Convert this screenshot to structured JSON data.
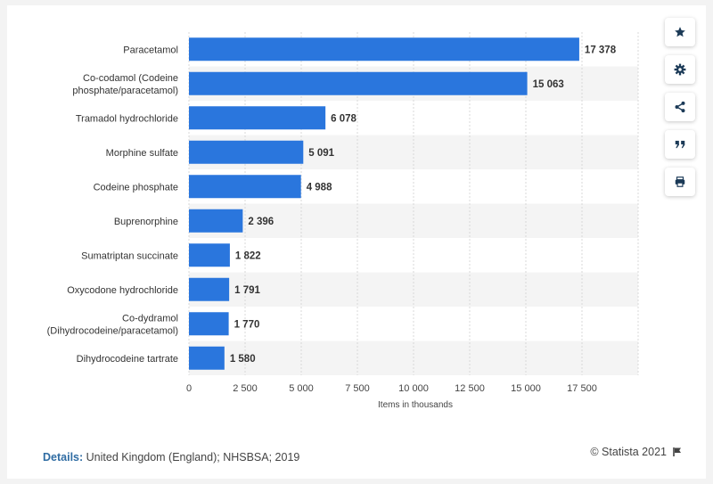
{
  "chart_data": {
    "type": "bar",
    "orientation": "horizontal",
    "categories": [
      [
        "Paracetamol"
      ],
      [
        "Co-codamol (Codeine",
        "phosphate/paracetamol)"
      ],
      [
        "Tramadol hydrochloride"
      ],
      [
        "Morphine sulfate"
      ],
      [
        "Codeine phosphate"
      ],
      [
        "Buprenorphine"
      ],
      [
        "Sumatriptan succinate"
      ],
      [
        "Oxycodone hydrochloride"
      ],
      [
        "Co-dydramol",
        "(Dihydrocodeine/paracetamol)"
      ],
      [
        "Dihydrocodeine tartrate"
      ]
    ],
    "values": [
      17378,
      15063,
      6078,
      5091,
      4988,
      2396,
      1822,
      1791,
      1770,
      1580
    ],
    "value_labels": [
      "17 378",
      "15 063",
      "6 078",
      "5 091",
      "4 988",
      "2 396",
      "1 822",
      "1 791",
      "1 770",
      "1 580"
    ],
    "xlabel": "Items in thousands",
    "ylabel": "",
    "xlim": [
      0,
      20000
    ],
    "xticks": [
      0,
      2500,
      5000,
      7500,
      10000,
      12500,
      15000,
      17500
    ],
    "xtick_labels": [
      "0",
      "2 500",
      "5 000",
      "7 500",
      "10 000",
      "12 500",
      "15 000",
      "17 500"
    ],
    "grid": true,
    "bar_color": "#2a76dd",
    "band_color": "#f4f4f4"
  },
  "footer": {
    "details_label": "Details:",
    "details_text": "United Kingdom (England); NHSBSA; 2019",
    "credit": "© Statista 2021"
  },
  "toolbar": [
    "star-icon",
    "gear-icon",
    "share-icon",
    "quote-icon",
    "print-icon"
  ],
  "colors": {
    "icon": "#1b3a57",
    "accent": "#2a76dd"
  }
}
